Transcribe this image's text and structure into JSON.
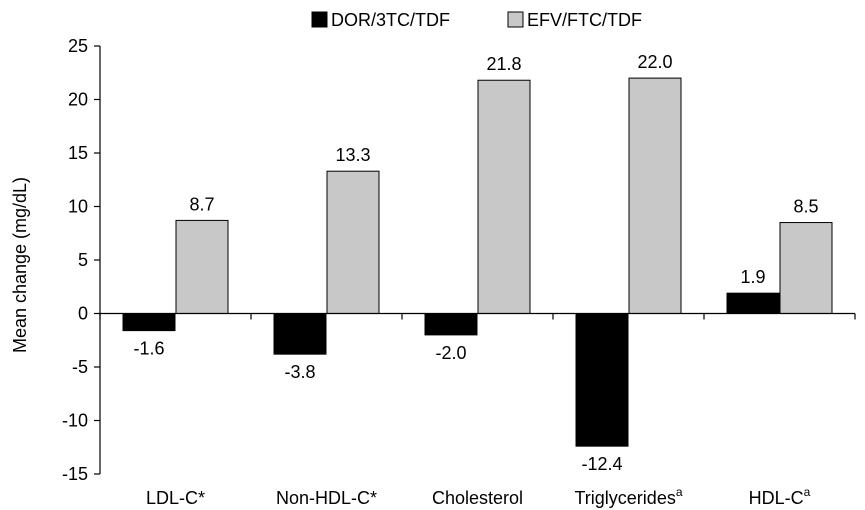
{
  "chart_data": {
    "type": "bar",
    "categories": [
      {
        "label": "LDL-C*",
        "sup": ""
      },
      {
        "label": "Non-HDL-C*",
        "sup": ""
      },
      {
        "label": "Cholesterol",
        "sup": ""
      },
      {
        "label": "Triglycerides",
        "sup": "a"
      },
      {
        "label": "HDL-C",
        "sup": "a"
      }
    ],
    "series": [
      {
        "name": "DOR/3TC/TDF",
        "color": "#000000",
        "values": [
          -1.6,
          -3.8,
          -2.0,
          -12.4,
          1.9
        ],
        "labels": [
          "-1.6",
          "-3.8",
          "-2.0",
          "-12.4",
          "1.9"
        ]
      },
      {
        "name": "EFV/FTC/TDF",
        "color": "#c8c8c8",
        "values": [
          8.7,
          13.3,
          21.8,
          22.0,
          8.5
        ],
        "labels": [
          "8.7",
          "13.3",
          "21.8",
          "22.0",
          "8.5"
        ]
      }
    ],
    "xlabel": "",
    "ylabel": "Mean change (mg/dL)",
    "ylim": [
      -15,
      25
    ],
    "yticks": [
      25,
      20,
      15,
      10,
      5,
      0,
      -5,
      -10,
      -15
    ],
    "ytick_labels": [
      "25",
      "20",
      "15",
      "10",
      "5",
      "0",
      "-5",
      "-10",
      "-15"
    ],
    "grid": false,
    "legend_position": "top"
  }
}
